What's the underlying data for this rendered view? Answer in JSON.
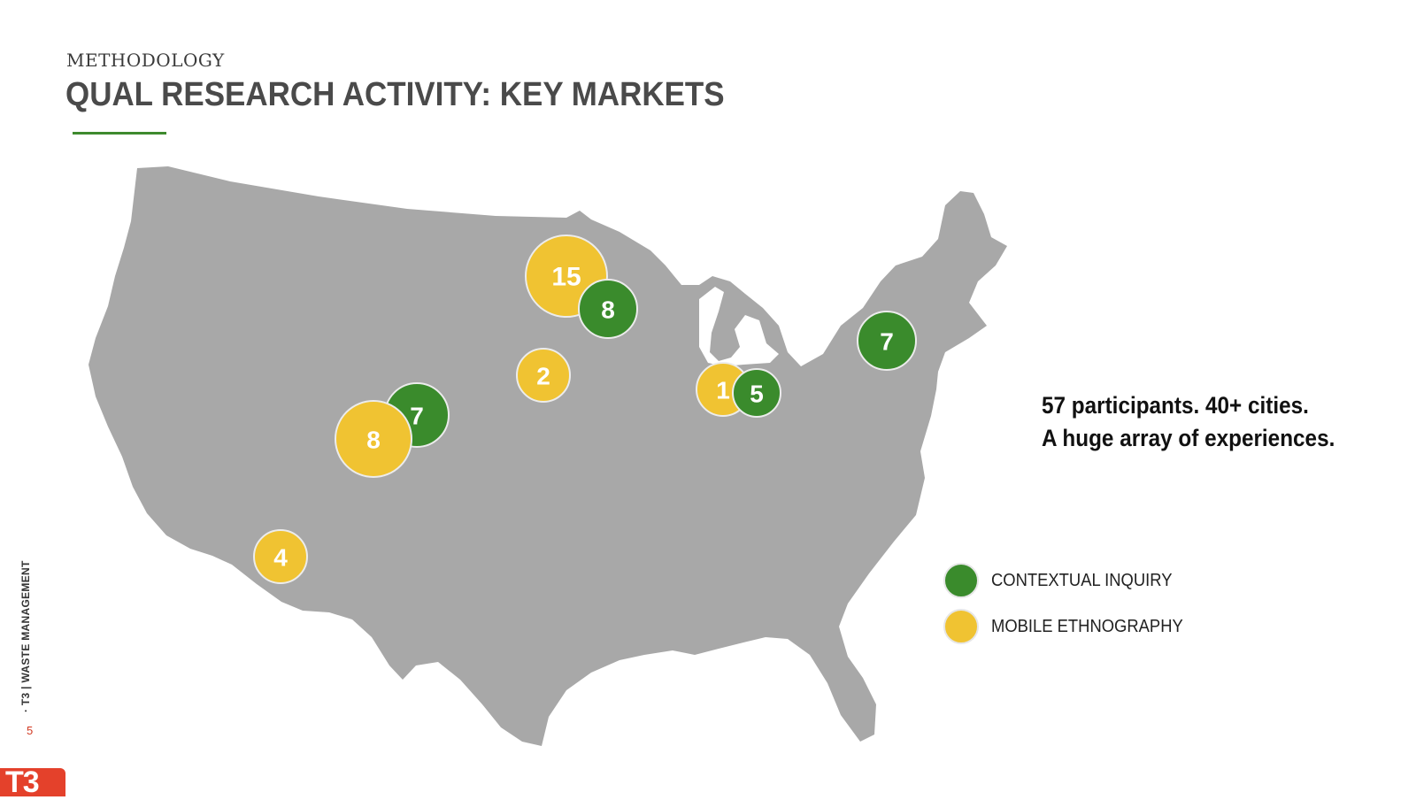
{
  "header": {
    "eyebrow": "METHODOLOGY",
    "title": "QUAL RESEARCH ACTIVITY: KEY MARKETS"
  },
  "colors": {
    "contextual": "#3a8b2c",
    "mobile": "#f0c332",
    "map": "#a8a8a8",
    "accent_rule": "#3e8a2e"
  },
  "markers": [
    {
      "type": "mobile",
      "value": "15"
    },
    {
      "type": "contextual",
      "value": "8"
    },
    {
      "type": "mobile",
      "value": "2"
    },
    {
      "type": "contextual",
      "value": "7"
    },
    {
      "type": "mobile",
      "value": "8"
    },
    {
      "type": "contextual",
      "value": "5"
    },
    {
      "type": "mobile",
      "value": "1"
    },
    {
      "type": "contextual",
      "value": "7"
    },
    {
      "type": "mobile",
      "value": "4"
    }
  ],
  "headline": {
    "line1": "57 participants. 40+ cities.",
    "line2": "A huge array of experiences."
  },
  "legend": {
    "contextual_label": "CONTEXTUAL INQUIRY",
    "mobile_label": "MOBILE ETHNOGRAPHY"
  },
  "footer": {
    "side_label": "· T3 | WASTE MANAGEMENT",
    "page_number": "5",
    "logo_text": "T3"
  }
}
